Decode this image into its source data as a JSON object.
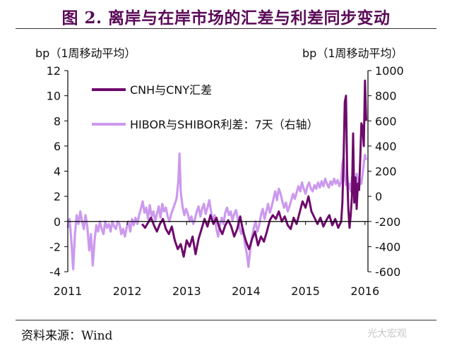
{
  "title": "图 2. 离岸与在岸市场的汇差与利差同步变动",
  "source": "资料来源：Wind",
  "watermark": "光大宏观",
  "colors": {
    "title": "#5a0a57",
    "cnh_cny": "#6e0a6b",
    "hibor_shibor": "#cc99ee",
    "rule": "#333333"
  },
  "chart_data": {
    "type": "line",
    "title": "离岸与在岸市场的汇差与利差同步变动",
    "x_label": "",
    "x_range": [
      2011.0,
      2016.05
    ],
    "x_ticks": [
      2011,
      2012,
      2013,
      2014,
      2015,
      2016
    ],
    "y_left": {
      "label": "bp（1周移动平均）",
      "range": [
        -4,
        12
      ],
      "ticks": [
        -4,
        -2,
        0,
        2,
        4,
        6,
        8,
        10,
        12
      ]
    },
    "y_right": {
      "label": "bp（1周移动平均）",
      "range": [
        -600,
        1000
      ],
      "ticks": [
        -600,
        -400,
        -200,
        0,
        200,
        400,
        600,
        800,
        1000
      ]
    },
    "legend": {
      "position": "top-left"
    },
    "series": [
      {
        "name": "CNH与CNY汇差",
        "axis": "left",
        "points": [
          [
            2012.25,
            -0.2
          ],
          [
            2012.3,
            -0.5
          ],
          [
            2012.35,
            -0.1
          ],
          [
            2012.4,
            0.3
          ],
          [
            2012.45,
            -0.3
          ],
          [
            2012.5,
            -0.8
          ],
          [
            2012.55,
            -0.2
          ],
          [
            2012.6,
            0.2
          ],
          [
            2012.65,
            -0.6
          ],
          [
            2012.7,
            -1.0
          ],
          [
            2012.75,
            -0.4
          ],
          [
            2012.8,
            -1.5
          ],
          [
            2012.85,
            -2.2
          ],
          [
            2012.9,
            -1.8
          ],
          [
            2012.95,
            -2.8
          ],
          [
            2013.0,
            -1.5
          ],
          [
            2013.05,
            -2.0
          ],
          [
            2013.1,
            -1.2
          ],
          [
            2013.15,
            -2.6
          ],
          [
            2013.2,
            -1.4
          ],
          [
            2013.25,
            -0.6
          ],
          [
            2013.3,
            0.2
          ],
          [
            2013.35,
            -0.4
          ],
          [
            2013.4,
            0.5
          ],
          [
            2013.45,
            -0.2
          ],
          [
            2013.5,
            0.3
          ],
          [
            2013.55,
            -0.5
          ],
          [
            2013.6,
            -1.0
          ],
          [
            2013.65,
            -0.3
          ],
          [
            2013.7,
            0.1
          ],
          [
            2013.75,
            -0.4
          ],
          [
            2013.8,
            -1.2
          ],
          [
            2013.85,
            -0.6
          ],
          [
            2013.9,
            0.4
          ],
          [
            2013.95,
            -0.8
          ],
          [
            2014.0,
            -1.6
          ],
          [
            2014.05,
            -2.2
          ],
          [
            2014.1,
            -1.4
          ],
          [
            2014.15,
            -0.8
          ],
          [
            2014.2,
            -1.9
          ],
          [
            2014.25,
            -1.2
          ],
          [
            2014.3,
            -1.6
          ],
          [
            2014.35,
            -0.8
          ],
          [
            2014.4,
            0.1
          ],
          [
            2014.45,
            0.5
          ],
          [
            2014.5,
            0.2
          ],
          [
            2014.55,
            0.8
          ],
          [
            2014.6,
            0.0
          ],
          [
            2014.65,
            0.4
          ],
          [
            2014.7,
            -0.3
          ],
          [
            2014.75,
            -0.6
          ],
          [
            2014.8,
            0.3
          ],
          [
            2014.85,
            -0.2
          ],
          [
            2014.9,
            0.7
          ],
          [
            2014.95,
            1.6
          ],
          [
            2015.0,
            1.1
          ],
          [
            2015.05,
            2.0
          ],
          [
            2015.1,
            0.8
          ],
          [
            2015.15,
            0.3
          ],
          [
            2015.2,
            -0.2
          ],
          [
            2015.25,
            0.3
          ],
          [
            2015.3,
            -0.4
          ],
          [
            2015.35,
            0.1
          ],
          [
            2015.4,
            0.5
          ],
          [
            2015.45,
            -0.3
          ],
          [
            2015.5,
            0.2
          ],
          [
            2015.55,
            -0.5
          ],
          [
            2015.6,
            0.0
          ],
          [
            2015.62,
            1.5
          ],
          [
            2015.64,
            5.0
          ],
          [
            2015.66,
            9.5
          ],
          [
            2015.68,
            10.0
          ],
          [
            2015.7,
            4.0
          ],
          [
            2015.72,
            1.0
          ],
          [
            2015.74,
            -0.5
          ],
          [
            2015.76,
            0.5
          ],
          [
            2015.78,
            2.0
          ],
          [
            2015.8,
            7.0
          ],
          [
            2015.82,
            1.5
          ],
          [
            2015.84,
            3.5
          ],
          [
            2015.86,
            1.0
          ],
          [
            2015.88,
            3.0
          ],
          [
            2015.9,
            2.5
          ],
          [
            2015.92,
            5.0
          ],
          [
            2015.94,
            7.8
          ],
          [
            2015.96,
            7.5
          ],
          [
            2015.98,
            6.0
          ],
          [
            2016.0,
            11.2
          ],
          [
            2016.02,
            8.0
          ]
        ]
      },
      {
        "name": "HIBOR与SHIBOR利差：7天（右轴）",
        "axis": "right",
        "points": [
          [
            2011.0,
            -250
          ],
          [
            2011.03,
            -180
          ],
          [
            2011.06,
            -350
          ],
          [
            2011.09,
            -580
          ],
          [
            2011.12,
            -300
          ],
          [
            2011.15,
            -150
          ],
          [
            2011.18,
            -220
          ],
          [
            2011.21,
            -120
          ],
          [
            2011.24,
            -200
          ],
          [
            2011.27,
            -260
          ],
          [
            2011.3,
            -150
          ],
          [
            2011.33,
            -250
          ],
          [
            2011.36,
            -430
          ],
          [
            2011.39,
            -300
          ],
          [
            2011.42,
            -550
          ],
          [
            2011.45,
            -350
          ],
          [
            2011.48,
            -230
          ],
          [
            2011.51,
            -280
          ],
          [
            2011.54,
            -200
          ],
          [
            2011.57,
            -260
          ],
          [
            2011.6,
            -300
          ],
          [
            2011.63,
            -200
          ],
          [
            2011.66,
            -250
          ],
          [
            2011.69,
            -220
          ],
          [
            2011.72,
            -280
          ],
          [
            2011.75,
            -200
          ],
          [
            2011.78,
            -240
          ],
          [
            2011.81,
            -260
          ],
          [
            2011.84,
            -200
          ],
          [
            2011.87,
            -220
          ],
          [
            2011.9,
            -300
          ],
          [
            2011.93,
            -260
          ],
          [
            2011.96,
            -320
          ],
          [
            2011.99,
            -250
          ],
          [
            2012.02,
            -200
          ],
          [
            2012.05,
            -280
          ],
          [
            2012.08,
            -180
          ],
          [
            2012.11,
            -230
          ],
          [
            2012.14,
            -170
          ],
          [
            2012.17,
            -220
          ],
          [
            2012.2,
            -150
          ],
          [
            2012.23,
            -100
          ],
          [
            2012.26,
            -40
          ],
          [
            2012.29,
            -130
          ],
          [
            2012.32,
            -90
          ],
          [
            2012.35,
            -180
          ],
          [
            2012.38,
            -70
          ],
          [
            2012.41,
            -160
          ],
          [
            2012.44,
            -120
          ],
          [
            2012.47,
            -200
          ],
          [
            2012.5,
            -140
          ],
          [
            2012.53,
            -80
          ],
          [
            2012.56,
            -170
          ],
          [
            2012.59,
            -60
          ],
          [
            2012.62,
            -120
          ],
          [
            2012.65,
            -90
          ],
          [
            2012.68,
            -160
          ],
          [
            2012.71,
            -200
          ],
          [
            2012.74,
            -140
          ],
          [
            2012.77,
            -100
          ],
          [
            2012.8,
            -60
          ],
          [
            2012.83,
            -20
          ],
          [
            2012.86,
            120
          ],
          [
            2012.88,
            340
          ],
          [
            2012.9,
            40
          ],
          [
            2012.93,
            -80
          ],
          [
            2012.96,
            -150
          ],
          [
            2012.99,
            -100
          ],
          [
            2013.02,
            -140
          ],
          [
            2013.05,
            -200
          ],
          [
            2013.08,
            -160
          ],
          [
            2013.11,
            -220
          ],
          [
            2013.14,
            -180
          ],
          [
            2013.17,
            -120
          ],
          [
            2013.2,
            -80
          ],
          [
            2013.23,
            -160
          ],
          [
            2013.26,
            -100
          ],
          [
            2013.29,
            -60
          ],
          [
            2013.32,
            -140
          ],
          [
            2013.35,
            -90
          ],
          [
            2013.38,
            -30
          ],
          [
            2013.41,
            -120
          ],
          [
            2013.44,
            -200
          ],
          [
            2013.47,
            -150
          ],
          [
            2013.5,
            -260
          ],
          [
            2013.53,
            -320
          ],
          [
            2013.56,
            -230
          ],
          [
            2013.59,
            -170
          ],
          [
            2013.62,
            -220
          ],
          [
            2013.65,
            -130
          ],
          [
            2013.68,
            -90
          ],
          [
            2013.71,
            -150
          ],
          [
            2013.74,
            -120
          ],
          [
            2013.77,
            -190
          ],
          [
            2013.8,
            -140
          ],
          [
            2013.83,
            -110
          ],
          [
            2013.86,
            -180
          ],
          [
            2013.89,
            -250
          ],
          [
            2013.92,
            -300
          ],
          [
            2013.95,
            -260
          ],
          [
            2013.98,
            -380
          ],
          [
            2014.01,
            -450
          ],
          [
            2014.04,
            -560
          ],
          [
            2014.07,
            -420
          ],
          [
            2014.1,
            -320
          ],
          [
            2014.13,
            -250
          ],
          [
            2014.16,
            -200
          ],
          [
            2014.19,
            -280
          ],
          [
            2014.22,
            -230
          ],
          [
            2014.25,
            -150
          ],
          [
            2014.28,
            -100
          ],
          [
            2014.31,
            -180
          ],
          [
            2014.34,
            -120
          ],
          [
            2014.37,
            -60
          ],
          [
            2014.4,
            -130
          ],
          [
            2014.43,
            -80
          ],
          [
            2014.46,
            -20
          ],
          [
            2014.49,
            40
          ],
          [
            2014.52,
            -30
          ],
          [
            2014.55,
            60
          ],
          [
            2014.58,
            20
          ],
          [
            2014.61,
            -40
          ],
          [
            2014.64,
            -90
          ],
          [
            2014.67,
            -50
          ],
          [
            2014.7,
            -120
          ],
          [
            2014.73,
            -80
          ],
          [
            2014.76,
            -30
          ],
          [
            2014.79,
            20
          ],
          [
            2014.82,
            -20
          ],
          [
            2014.85,
            30
          ],
          [
            2014.88,
            80
          ],
          [
            2014.91,
            40
          ],
          [
            2014.94,
            110
          ],
          [
            2014.97,
            60
          ],
          [
            2015.0,
            20
          ],
          [
            2015.03,
            80
          ],
          [
            2015.06,
            110
          ],
          [
            2015.09,
            60
          ],
          [
            2015.12,
            40
          ],
          [
            2015.15,
            90
          ],
          [
            2015.18,
            60
          ],
          [
            2015.21,
            110
          ],
          [
            2015.24,
            70
          ],
          [
            2015.27,
            120
          ],
          [
            2015.3,
            80
          ],
          [
            2015.33,
            140
          ],
          [
            2015.36,
            100
          ],
          [
            2015.39,
            70
          ],
          [
            2015.42,
            120
          ],
          [
            2015.45,
            90
          ],
          [
            2015.48,
            140
          ],
          [
            2015.51,
            100
          ],
          [
            2015.54,
            130
          ],
          [
            2015.57,
            80
          ],
          [
            2015.6,
            120
          ],
          [
            2015.62,
            260
          ],
          [
            2015.64,
            310
          ],
          [
            2015.66,
            180
          ],
          [
            2015.68,
            90
          ],
          [
            2015.7,
            160
          ],
          [
            2015.72,
            60
          ],
          [
            2015.74,
            100
          ],
          [
            2015.76,
            40
          ],
          [
            2015.78,
            150
          ],
          [
            2015.8,
            80
          ],
          [
            2015.82,
            120
          ],
          [
            2015.84,
            90
          ],
          [
            2015.86,
            180
          ],
          [
            2015.88,
            120
          ],
          [
            2015.9,
            70
          ],
          [
            2015.92,
            130
          ],
          [
            2015.94,
            100
          ],
          [
            2015.96,
            180
          ],
          [
            2015.98,
            260
          ],
          [
            2016.0,
            330
          ],
          [
            2016.02,
            290
          ]
        ]
      }
    ]
  }
}
